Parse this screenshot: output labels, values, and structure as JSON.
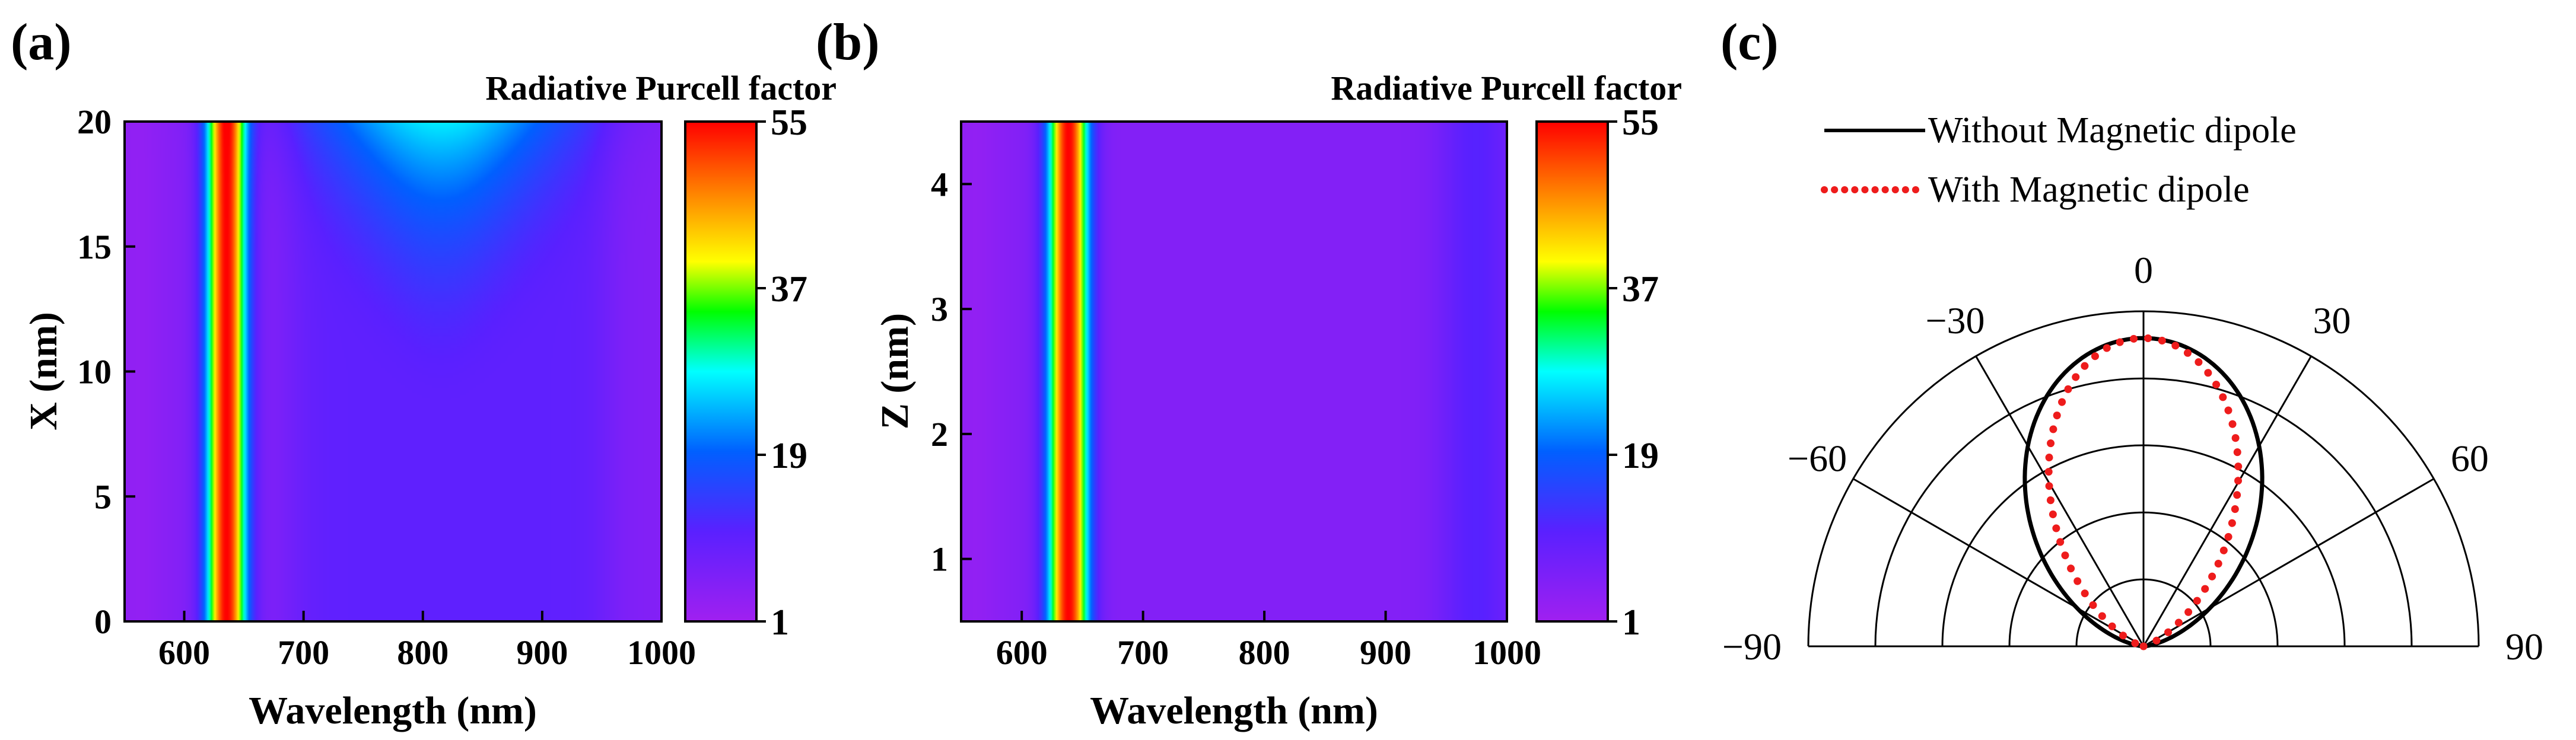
{
  "colormap": {
    "stops": [
      "#a020f0",
      "#5a20ff",
      "#0060ff",
      "#00ffff",
      "#00ff00",
      "#ffff00",
      "#ff8000",
      "#ff0000"
    ],
    "stop_positions": [
      0,
      0.18,
      0.34,
      0.5,
      0.62,
      0.72,
      0.86,
      1
    ]
  },
  "chart_data": [
    {
      "panel_label": "(a)",
      "type": "heatmap",
      "title": "Radiative Purcell factor",
      "xlabel": "Wavelength (nm)",
      "ylabel": "X (nm)",
      "xlim": [
        550,
        1000
      ],
      "ylim": [
        0,
        20
      ],
      "xticks": [
        600,
        700,
        800,
        900,
        1000
      ],
      "yticks": [
        0,
        5,
        10,
        15,
        20
      ],
      "colorbar": {
        "min": 1,
        "max": 55,
        "ticks": [
          1,
          19,
          37,
          55
        ]
      },
      "features": {
        "peak_wavelength_nm": 635,
        "peak_value": 55,
        "secondary_feature_wavelength_nm": 815,
        "secondary_feature_value_at_top": 22,
        "secondary_feature_onset_x_nm": 8,
        "background_value": 5
      }
    },
    {
      "panel_label": "(b)",
      "type": "heatmap",
      "title": "Radiative Purcell factor",
      "xlabel": "Wavelength (nm)",
      "ylabel": "Z (nm)",
      "xlim": [
        550,
        1000
      ],
      "ylim": [
        0.5,
        4.5
      ],
      "xticks": [
        600,
        700,
        800,
        900,
        1000
      ],
      "yticks": [
        1,
        2,
        3,
        4
      ],
      "colorbar": {
        "min": 1,
        "max": 55,
        "ticks": [
          1,
          19,
          37,
          55
        ]
      },
      "features": {
        "peak_wavelength_nm": 638,
        "peak_value": 55,
        "background_value": 5
      }
    },
    {
      "panel_label": "(c)",
      "type": "polar",
      "angle_range_deg": [
        -90,
        90
      ],
      "angle_gridlines_deg": [
        -90,
        -60,
        -30,
        0,
        30,
        60,
        90
      ],
      "angle_tick_labels": [
        "90",
        "60",
        "30",
        "0",
        "−30",
        "−60",
        "−90"
      ],
      "radial_gridlines": [
        0.2,
        0.4,
        0.6,
        0.8,
        1.0
      ],
      "series": [
        {
          "name": "Without Magnetic dipole",
          "style": "solid",
          "color": "#000000",
          "shape": "cos^2 lobe",
          "max_radius": 0.92
        },
        {
          "name": "With Magnetic dipole",
          "style": "dotted",
          "color": "#ee1c1c",
          "shape": "narrow lobe",
          "max_radius": 0.92
        }
      ]
    }
  ]
}
